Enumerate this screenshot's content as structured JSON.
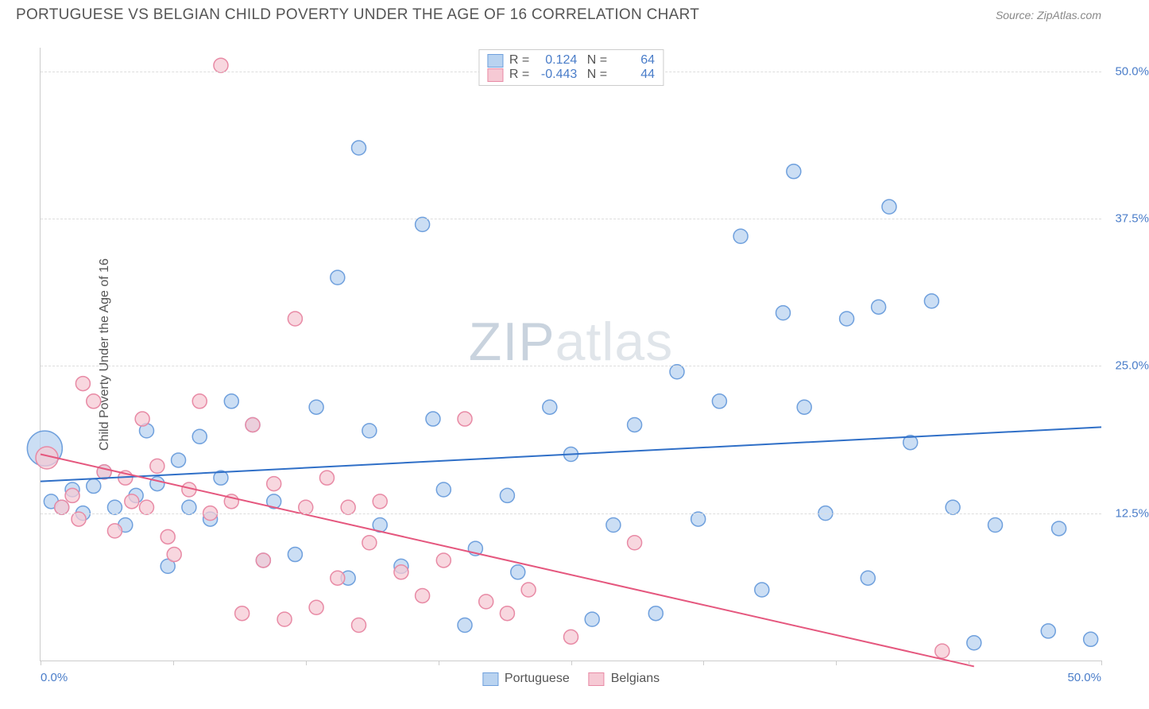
{
  "header": {
    "title": "PORTUGUESE VS BELGIAN CHILD POVERTY UNDER THE AGE OF 16 CORRELATION CHART",
    "source_prefix": "Source: ",
    "source_name": "ZipAtlas.com"
  },
  "watermark": {
    "part1": "ZIP",
    "part2": "atlas"
  },
  "chart": {
    "type": "scatter",
    "y_axis_title": "Child Poverty Under the Age of 16",
    "xlim": [
      0,
      50
    ],
    "ylim": [
      0,
      52
    ],
    "x_ticks": [
      0,
      6.25,
      12.5,
      18.75,
      25,
      31.25,
      37.5,
      43.75,
      50
    ],
    "x_labels_visible": {
      "min": "0.0%",
      "max": "50.0%"
    },
    "y_gridlines": [
      {
        "value": 12.5,
        "label": "12.5%"
      },
      {
        "value": 25.0,
        "label": "25.0%"
      },
      {
        "value": 37.5,
        "label": "37.5%"
      },
      {
        "value": 50.0,
        "label": "50.0%"
      }
    ],
    "background_color": "#ffffff",
    "grid_color": "#dddddd",
    "axis_color": "#cccccc",
    "tick_label_color": "#4a7dc9",
    "marker_radius": 9,
    "marker_stroke_width": 1.5,
    "line_width": 2,
    "series": [
      {
        "name": "Portuguese",
        "fill": "#b9d3f0",
        "stroke": "#6fa0dd",
        "line_color": "#2f6fc7",
        "R": "0.124",
        "N": "64",
        "regression": {
          "x1": 0,
          "y1": 15.2,
          "x2": 50,
          "y2": 19.8
        },
        "points": [
          {
            "x": 0.2,
            "y": 18.0,
            "r": 22
          },
          {
            "x": 0.5,
            "y": 13.5
          },
          {
            "x": 1.0,
            "y": 13.0
          },
          {
            "x": 1.5,
            "y": 14.5
          },
          {
            "x": 2.0,
            "y": 12.5
          },
          {
            "x": 2.5,
            "y": 14.8
          },
          {
            "x": 3.0,
            "y": 16.0
          },
          {
            "x": 3.5,
            "y": 13.0
          },
          {
            "x": 4.0,
            "y": 11.5
          },
          {
            "x": 4.5,
            "y": 14.0
          },
          {
            "x": 5.0,
            "y": 19.5
          },
          {
            "x": 5.5,
            "y": 15.0
          },
          {
            "x": 6.0,
            "y": 8.0
          },
          {
            "x": 6.5,
            "y": 17.0
          },
          {
            "x": 7.0,
            "y": 13.0
          },
          {
            "x": 7.5,
            "y": 19.0
          },
          {
            "x": 8.0,
            "y": 12.0
          },
          {
            "x": 8.5,
            "y": 15.5
          },
          {
            "x": 9.0,
            "y": 22.0
          },
          {
            "x": 10.0,
            "y": 20.0
          },
          {
            "x": 10.5,
            "y": 8.5
          },
          {
            "x": 11.0,
            "y": 13.5
          },
          {
            "x": 12.0,
            "y": 9.0
          },
          {
            "x": 13.0,
            "y": 21.5
          },
          {
            "x": 14.0,
            "y": 32.5
          },
          {
            "x": 14.5,
            "y": 7.0
          },
          {
            "x": 15.0,
            "y": 43.5
          },
          {
            "x": 15.5,
            "y": 19.5
          },
          {
            "x": 16.0,
            "y": 11.5
          },
          {
            "x": 17.0,
            "y": 8.0
          },
          {
            "x": 18.0,
            "y": 37.0
          },
          {
            "x": 18.5,
            "y": 20.5
          },
          {
            "x": 19.0,
            "y": 14.5
          },
          {
            "x": 20.0,
            "y": 3.0
          },
          {
            "x": 20.5,
            "y": 9.5
          },
          {
            "x": 22.0,
            "y": 14.0
          },
          {
            "x": 22.5,
            "y": 7.5
          },
          {
            "x": 24.0,
            "y": 21.5
          },
          {
            "x": 25.0,
            "y": 17.5
          },
          {
            "x": 26.0,
            "y": 3.5
          },
          {
            "x": 27.0,
            "y": 11.5
          },
          {
            "x": 28.0,
            "y": 20.0
          },
          {
            "x": 29.0,
            "y": 4.0
          },
          {
            "x": 30.0,
            "y": 24.5
          },
          {
            "x": 31.0,
            "y": 12.0
          },
          {
            "x": 32.0,
            "y": 22.0
          },
          {
            "x": 33.0,
            "y": 36.0
          },
          {
            "x": 34.0,
            "y": 6.0
          },
          {
            "x": 35.0,
            "y": 29.5
          },
          {
            "x": 35.5,
            "y": 41.5
          },
          {
            "x": 36.0,
            "y": 21.5
          },
          {
            "x": 37.0,
            "y": 12.5
          },
          {
            "x": 38.0,
            "y": 29.0
          },
          {
            "x": 39.0,
            "y": 7.0
          },
          {
            "x": 39.5,
            "y": 30.0
          },
          {
            "x": 40.0,
            "y": 38.5
          },
          {
            "x": 41.0,
            "y": 18.5
          },
          {
            "x": 42.0,
            "y": 30.5
          },
          {
            "x": 43.0,
            "y": 13.0
          },
          {
            "x": 44.0,
            "y": 1.5
          },
          {
            "x": 45.0,
            "y": 11.5
          },
          {
            "x": 47.5,
            "y": 2.5
          },
          {
            "x": 48.0,
            "y": 11.2
          },
          {
            "x": 49.5,
            "y": 1.8
          }
        ]
      },
      {
        "name": "Belgians",
        "fill": "#f6c9d4",
        "stroke": "#e88aa5",
        "line_color": "#e5577e",
        "R": "-0.443",
        "N": "44",
        "regression": {
          "x1": 0,
          "y1": 17.5,
          "x2": 44,
          "y2": -0.5
        },
        "points": [
          {
            "x": 0.3,
            "y": 17.2,
            "r": 14
          },
          {
            "x": 1.0,
            "y": 13.0
          },
          {
            "x": 1.5,
            "y": 14.0
          },
          {
            "x": 1.8,
            "y": 12.0
          },
          {
            "x": 2.0,
            "y": 23.5
          },
          {
            "x": 2.5,
            "y": 22.0
          },
          {
            "x": 3.0,
            "y": 16.0
          },
          {
            "x": 3.5,
            "y": 11.0
          },
          {
            "x": 4.0,
            "y": 15.5
          },
          {
            "x": 4.3,
            "y": 13.5
          },
          {
            "x": 4.8,
            "y": 20.5
          },
          {
            "x": 5.0,
            "y": 13.0
          },
          {
            "x": 5.5,
            "y": 16.5
          },
          {
            "x": 6.0,
            "y": 10.5
          },
          {
            "x": 6.3,
            "y": 9.0
          },
          {
            "x": 7.0,
            "y": 14.5
          },
          {
            "x": 7.5,
            "y": 22.0
          },
          {
            "x": 8.0,
            "y": 12.5
          },
          {
            "x": 8.5,
            "y": 50.5
          },
          {
            "x": 9.0,
            "y": 13.5
          },
          {
            "x": 9.5,
            "y": 4.0
          },
          {
            "x": 10.0,
            "y": 20.0
          },
          {
            "x": 10.5,
            "y": 8.5
          },
          {
            "x": 11.0,
            "y": 15.0
          },
          {
            "x": 11.5,
            "y": 3.5
          },
          {
            "x": 12.0,
            "y": 29.0
          },
          {
            "x": 12.5,
            "y": 13.0
          },
          {
            "x": 13.0,
            "y": 4.5
          },
          {
            "x": 13.5,
            "y": 15.5
          },
          {
            "x": 14.0,
            "y": 7.0
          },
          {
            "x": 14.5,
            "y": 13.0
          },
          {
            "x": 15.0,
            "y": 3.0
          },
          {
            "x": 15.5,
            "y": 10.0
          },
          {
            "x": 16.0,
            "y": 13.5
          },
          {
            "x": 17.0,
            "y": 7.5
          },
          {
            "x": 18.0,
            "y": 5.5
          },
          {
            "x": 19.0,
            "y": 8.5
          },
          {
            "x": 20.0,
            "y": 20.5
          },
          {
            "x": 21.0,
            "y": 5.0
          },
          {
            "x": 22.0,
            "y": 4.0
          },
          {
            "x": 23.0,
            "y": 6.0
          },
          {
            "x": 25.0,
            "y": 2.0
          },
          {
            "x": 28.0,
            "y": 10.0
          },
          {
            "x": 42.5,
            "y": 0.8
          }
        ]
      }
    ],
    "legend_bottom": [
      {
        "label": "Portuguese",
        "fill": "#b9d3f0",
        "stroke": "#6fa0dd"
      },
      {
        "label": "Belgians",
        "fill": "#f6c9d4",
        "stroke": "#e88aa5"
      }
    ]
  }
}
